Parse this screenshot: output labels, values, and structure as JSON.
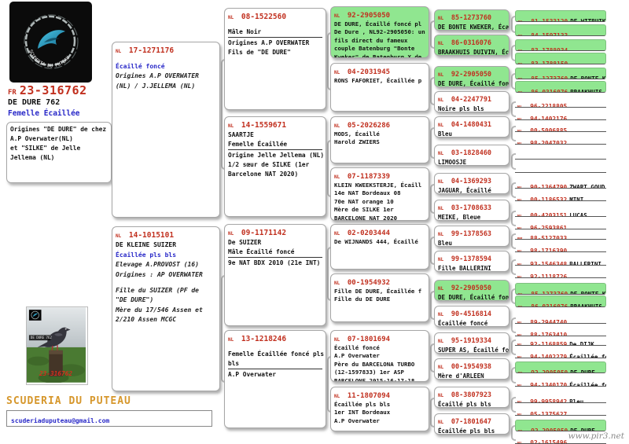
{
  "subject": {
    "country": "FR",
    "ring": "23-316762",
    "name": "DE DURE 762",
    "sex": "Femelle Écaillée",
    "origins": "Origines \"DE DURE\" de chez\nA.P Overwater(NL)\net \"SILKE\" de Jelle\nJellema (NL)"
  },
  "loft": {
    "name": "SCUDERIA DU PUTEAU",
    "logo_text": "SCUDERIA DU PUTEAU",
    "email": "scuderiaduputeau@gmail.com"
  },
  "photo": {
    "ring": "23-316762",
    "label": "DE DURE 762"
  },
  "watermark": "www.pir3.net",
  "colors": {
    "highlight_green": "#90e690",
    "ring_red": "#c1301f",
    "accent_blue": "#2929c8",
    "loft_gold": "#d6972c"
  },
  "generations": {
    "gen1": [
      {
        "country": "NL",
        "ring": "17-1271176",
        "green": false,
        "lines": [
          [
            "",
            "n"
          ],
          [
            "Écaillé foncé",
            "b"
          ],
          [
            "Origines A.P OVERWATER",
            "i"
          ],
          [
            "(NL) / J.JELLEMA (NL)",
            "i"
          ]
        ]
      },
      {
        "country": "NL",
        "ring": "14-1015101",
        "green": false,
        "lines": [
          [
            "DE KLEINE SUIZER",
            "n"
          ],
          [
            "Écaillée pls bls",
            "b"
          ],
          [
            "Elevage A.PROVOST (16)",
            "i"
          ],
          [
            "Origines : AP OVERWATER",
            "i"
          ],
          [
            "",
            "n"
          ],
          [
            "Fille du SUIZER (PF de",
            "i"
          ],
          [
            "\"DE DURE\")",
            "i"
          ],
          [
            "Mère du 17/546 Assen et",
            "i"
          ],
          [
            "2/210 Assen MCGC",
            "i"
          ]
        ]
      }
    ],
    "gen2": [
      {
        "country": "NL",
        "ring": "08-1522560",
        "green": false,
        "lines": [
          [
            "",
            "n"
          ],
          [
            "Mâle Noir",
            "u"
          ],
          [
            "Origines A.P OVERWATER",
            "n"
          ],
          [
            "Fils de \"DE DURE\"",
            "n"
          ]
        ]
      },
      {
        "country": "NL",
        "ring": "14-1559671",
        "green": false,
        "lines": [
          [
            "SAARTJE",
            "n"
          ],
          [
            "Femelle Écaillée",
            "u"
          ],
          [
            "Origine Jelle Jellema (NL)",
            "n"
          ],
          [
            "1/2 sœur de SILKE (1er",
            "n"
          ],
          [
            "Barcelone NAT 2020)",
            "n"
          ]
        ]
      },
      {
        "country": "NL",
        "ring": "09-1171142",
        "green": false,
        "lines": [
          [
            "De SUIZER",
            "n"
          ],
          [
            "Mâle Écaillé foncé",
            "u"
          ],
          [
            "9e NAT BDX 2010 (21e INT)",
            "n"
          ]
        ]
      },
      {
        "country": "NL",
        "ring": "13-1218246",
        "green": false,
        "lines": [
          [
            "",
            "n"
          ],
          [
            "Femelle Écaillée foncé pls",
            "n"
          ],
          [
            "bls",
            "u"
          ],
          [
            "A.P Overwater",
            "n"
          ]
        ]
      }
    ],
    "gen3": [
      {
        "country": "NL",
        "ring": "92-2905050",
        "green": true,
        "lines": [
          [
            "DE DURE, Écaillé foncé pl",
            "n"
          ],
          [
            "De Dure , NL92-2905050: un",
            "n"
          ],
          [
            "fils direct du fameux",
            "n"
          ],
          [
            "couple Batenburg \"Bonte",
            "n"
          ],
          [
            "Kweker\" de Batenburg X de",
            "n"
          ]
        ]
      },
      {
        "country": "NL",
        "ring": "04-2031945",
        "green": false,
        "lines": [
          [
            "RONS FAFORIET, Écaillée p",
            "n"
          ]
        ]
      },
      {
        "country": "NL",
        "ring": "05-2026286",
        "green": false,
        "lines": [
          [
            "MODS, Écaillé",
            "n"
          ],
          [
            "Harold ZWIERS",
            "n"
          ]
        ]
      },
      {
        "country": "NL",
        "ring": "07-1187339",
        "green": false,
        "lines": [
          [
            "KLEIN KWEEKSTERJE, Écaill",
            "n"
          ],
          [
            "14e NAT Bordeaux 08",
            "n"
          ],
          [
            "70e NAT orange 10",
            "n"
          ],
          [
            "Mère de SILKE 1er",
            "n"
          ],
          [
            "BARCELONE NAT 2020",
            "n"
          ]
        ]
      },
      {
        "country": "NL",
        "ring": "02-0203444",
        "green": false,
        "lines": [
          [
            "De WIJNANDS 444, Écaillé",
            "n"
          ]
        ]
      },
      {
        "country": "NL",
        "ring": "00-1954932",
        "green": false,
        "lines": [
          [
            "Fille DE DURE, Écaillée f",
            "n"
          ],
          [
            "Fille du DE DURE",
            "n"
          ]
        ]
      },
      {
        "country": "NL",
        "ring": "07-1801694",
        "green": false,
        "lines": [
          [
            "Écaillé foncé",
            "n"
          ],
          [
            "A.P Overwater",
            "n"
          ],
          [
            "Père du BARCELONA TURBO",
            "n"
          ],
          [
            "(12-1597833) 1er ASP",
            "n"
          ],
          [
            "BARCELONE 2015-16-17-18",
            "n"
          ]
        ]
      },
      {
        "country": "NL",
        "ring": "11-1807094",
        "green": false,
        "lines": [
          [
            "Écaillée pls bls",
            "n"
          ],
          [
            "1er INT Bordeaux",
            "n"
          ],
          [
            "A.P Overwater",
            "n"
          ]
        ]
      }
    ],
    "gen4": [
      {
        "country": "NL",
        "ring": "85-1273760",
        "green": true,
        "lines": [
          [
            "DE BONTE KWEKER, Éca",
            "n"
          ]
        ]
      },
      {
        "country": "NL",
        "ring": "86-0316076",
        "green": true,
        "lines": [
          [
            "BRAAKHUIS DUIVIN, Éc",
            "n"
          ]
        ]
      },
      {
        "country": "NL",
        "ring": "92-2905050",
        "green": true,
        "lines": [
          [
            "DE DURE, Écaillé fon",
            "n"
          ]
        ]
      },
      {
        "country": "NL",
        "ring": "04-2247791",
        "green": false,
        "lines": [
          [
            "Noire pls bls",
            "n"
          ]
        ]
      },
      {
        "country": "NL",
        "ring": "04-1480431",
        "green": false,
        "lines": [
          [
            "Bleu",
            "n"
          ]
        ]
      },
      {
        "country": "NL",
        "ring": "03-1828460",
        "green": false,
        "lines": [
          [
            "LIMOOSJE",
            "n"
          ]
        ]
      },
      {
        "country": "NL",
        "ring": "04-1369293",
        "green": false,
        "lines": [
          [
            "JAGUAR, Écaillé",
            "n"
          ]
        ]
      },
      {
        "country": "NL",
        "ring": "03-1708633",
        "green": false,
        "lines": [
          [
            "MEIKE, Bleue",
            "n"
          ]
        ]
      },
      {
        "country": "NL",
        "ring": "99-1378563",
        "green": false,
        "lines": [
          [
            "Bleu",
            "n"
          ]
        ]
      },
      {
        "country": "NL",
        "ring": "99-1378594",
        "green": false,
        "lines": [
          [
            "Fille BALLERINI",
            "n"
          ]
        ]
      },
      {
        "country": "NL",
        "ring": "92-2905050",
        "green": true,
        "lines": [
          [
            "DE DURE, Écaillé fon",
            "n"
          ]
        ]
      },
      {
        "country": "NL",
        "ring": "90-4516814",
        "green": false,
        "lines": [
          [
            "Écaillée foncé",
            "n"
          ]
        ]
      },
      {
        "country": "NL",
        "ring": "95-1919334",
        "green": false,
        "lines": [
          [
            "SUPER AS, Écaillé fo",
            "n"
          ]
        ]
      },
      {
        "country": "NL",
        "ring": "00-1954938",
        "green": false,
        "lines": [
          [
            "Mère d'ARLEEN",
            "n"
          ]
        ]
      },
      {
        "country": "NL",
        "ring": "08-3807923",
        "green": false,
        "lines": [
          [
            "Écaillé pls bls",
            "n"
          ]
        ]
      },
      {
        "country": "NL",
        "ring": "07-1801647",
        "green": false,
        "lines": [
          [
            "Écaillée pls bls",
            "n"
          ]
        ]
      }
    ],
    "gen5": [
      {
        "country": "NL",
        "ring": "81-1533120",
        "name": "DE WITBUIK",
        "green": true
      },
      {
        "country": "NL",
        "ring": "84-1597133",
        "name": "",
        "green": true
      },
      {
        "country": "NL",
        "ring": "83-1788934",
        "name": "",
        "green": true
      },
      {
        "country": "NL",
        "ring": "83-1788150",
        "name": "",
        "green": true
      },
      {
        "country": "NL",
        "ring": "85-1273760",
        "name": "DE BONTE KWEKE",
        "green": true
      },
      {
        "country": "NL",
        "ring": "86-0316076",
        "name": "BRAAKHUIS DUIV",
        "green": true
      },
      {
        "country": "NL",
        "ring": "96-2218805",
        "name": "",
        "green": false
      },
      {
        "country": "NL",
        "ring": "94-1402176",
        "name": "",
        "green": false
      },
      {
        "country": "NL",
        "ring": "00-5006885",
        "name": "",
        "green": false
      },
      {
        "country": "NL",
        "ring": "98-2047032",
        "name": "",
        "green": false
      },
      {
        "country": "",
        "ring": "",
        "name": "",
        "green": false
      },
      {
        "country": "",
        "ring": "",
        "name": "",
        "green": false
      },
      {
        "country": "NL",
        "ring": "90-1364790",
        "name": "ZWART GOUD",
        "green": false
      },
      {
        "country": "NL",
        "ring": "00-1186532",
        "name": "MINI",
        "green": false
      },
      {
        "country": "NL",
        "ring": "00-4203151",
        "name": "LUCAS",
        "green": false
      },
      {
        "country": "NL",
        "ring": "96-2593861",
        "name": "",
        "green": false
      },
      {
        "country": "BE",
        "ring": "88-5127033",
        "name": "",
        "green": false
      },
      {
        "country": "NL",
        "ring": "98-1716390",
        "name": "",
        "green": false
      },
      {
        "country": "NL",
        "ring": "93-1546348",
        "name": "BALLERINI",
        "green": false
      },
      {
        "country": "NL",
        "ring": "92-1118726",
        "name": "",
        "green": false
      },
      {
        "country": "NL",
        "ring": "85-1273760",
        "name": "DE BONTE KWEKE",
        "green": true
      },
      {
        "country": "NL",
        "ring": "86-0316076",
        "name": "BRAAKHUIS DUIV",
        "green": true
      },
      {
        "country": "NL",
        "ring": "89-2944740",
        "name": "",
        "green": false
      },
      {
        "country": "NL",
        "ring": "88-1763410",
        "name": "",
        "green": false
      },
      {
        "country": "NL",
        "ring": "92-1168859",
        "name": "De DIJK",
        "green": false
      },
      {
        "country": "NL",
        "ring": "94-1402279",
        "name": "Écaillée foncé",
        "green": false
      },
      {
        "country": "NL",
        "ring": "92-2905050",
        "name": "DE DURE",
        "green": true
      },
      {
        "country": "NL",
        "ring": "94-1340170",
        "name": "Écaillée foncé",
        "green": false
      },
      {
        "country": "NL",
        "ring": "99-9958942",
        "name": "Bleu",
        "green": false
      },
      {
        "country": "NL",
        "ring": "05-1375627",
        "name": "",
        "green": false
      },
      {
        "country": "NL",
        "ring": "92-2905050",
        "name": "DE DURE",
        "green": true
      },
      {
        "country": "NL",
        "ring": "02-1615496",
        "name": "",
        "green": false
      }
    ]
  }
}
